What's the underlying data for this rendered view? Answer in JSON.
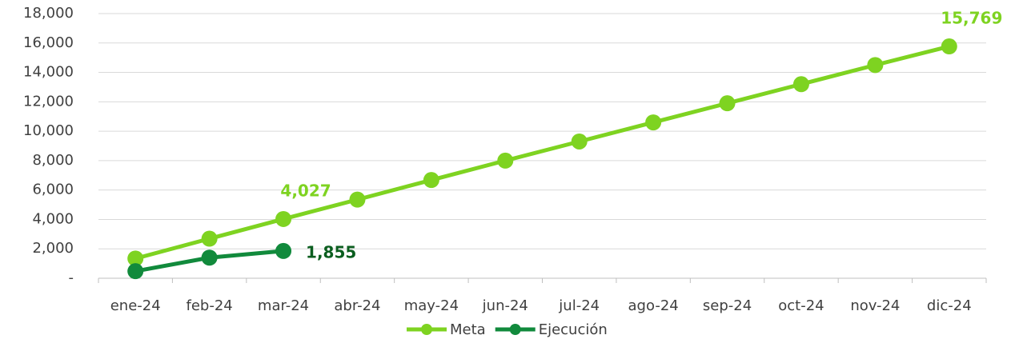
{
  "chart_data": {
    "type": "line",
    "categories": [
      "ene-24",
      "feb-24",
      "mar-24",
      "abr-24",
      "may-24",
      "jun-24",
      "jul-24",
      "ago-24",
      "sep-24",
      "oct-24",
      "nov-24",
      "dic-24"
    ],
    "series": [
      {
        "name": "Meta",
        "color": "#7ed321",
        "label_color": "#7ed321",
        "label_position": "above",
        "values": [
          1340,
          2690,
          4027,
          5350,
          6680,
          8000,
          9300,
          10600,
          11900,
          13200,
          14500,
          15769
        ],
        "value_labels": [
          null,
          null,
          "4,027",
          null,
          null,
          null,
          null,
          null,
          null,
          null,
          null,
          "15,769"
        ]
      },
      {
        "name": "Ejecución",
        "color": "#118a3c",
        "label_color": "#0b5e1f",
        "label_position": "right",
        "values": [
          480,
          1400,
          1855,
          null,
          null,
          null,
          null,
          null,
          null,
          null,
          null,
          null
        ],
        "value_labels": [
          null,
          null,
          "1,855",
          null,
          null,
          null,
          null,
          null,
          null,
          null,
          null,
          null
        ]
      }
    ],
    "ylim": [
      0,
      18000
    ],
    "yticks": [
      {
        "value": 0,
        "label": "-"
      },
      {
        "value": 2000,
        "label": "2,000"
      },
      {
        "value": 4000,
        "label": "4,000"
      },
      {
        "value": 6000,
        "label": "6,000"
      },
      {
        "value": 8000,
        "label": "8,000"
      },
      {
        "value": 10000,
        "label": "10,000"
      },
      {
        "value": 12000,
        "label": "12,000"
      },
      {
        "value": 14000,
        "label": "14,000"
      },
      {
        "value": 16000,
        "label": "16,000"
      },
      {
        "value": 18000,
        "label": "18,000"
      }
    ],
    "grid": true,
    "legend": "bottom"
  }
}
